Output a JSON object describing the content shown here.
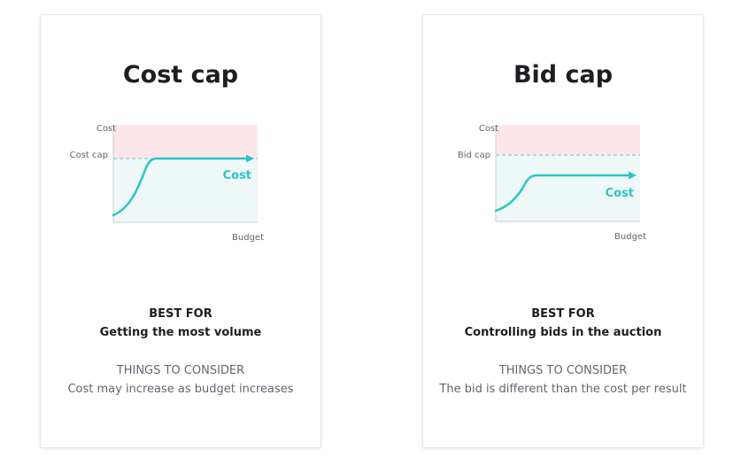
{
  "colors": {
    "accent": "#2ec4c4",
    "above_limit_fill": "#fde6ea",
    "below_limit_fill": "#eef8f8",
    "axis": "#c9ced6",
    "dashed_line": "#7fd1d6",
    "text_dark": "#1c1e21",
    "text_muted": "#606770"
  },
  "cards": [
    {
      "title": "Cost cap",
      "diagram": {
        "y_axis_label": "Cost",
        "x_axis_label": "Budget",
        "limit_label": "Cost cap",
        "curve_label": "Cost"
      },
      "best_for_heading": "BEST FOR",
      "best_for_text": "Getting the most volume",
      "consider_heading": "THINGS TO CONSIDER",
      "consider_text": "Cost may increase as budget increases"
    },
    {
      "title": "Bid cap",
      "diagram": {
        "y_axis_label": "Cost",
        "x_axis_label": "Budget",
        "limit_label": "Bid cap",
        "curve_label": "Cost"
      },
      "best_for_heading": "BEST FOR",
      "best_for_text": "Controlling bids in the auction",
      "consider_heading": "THINGS TO CONSIDER",
      "consider_text": "The bid is different than the cost per result"
    }
  ]
}
